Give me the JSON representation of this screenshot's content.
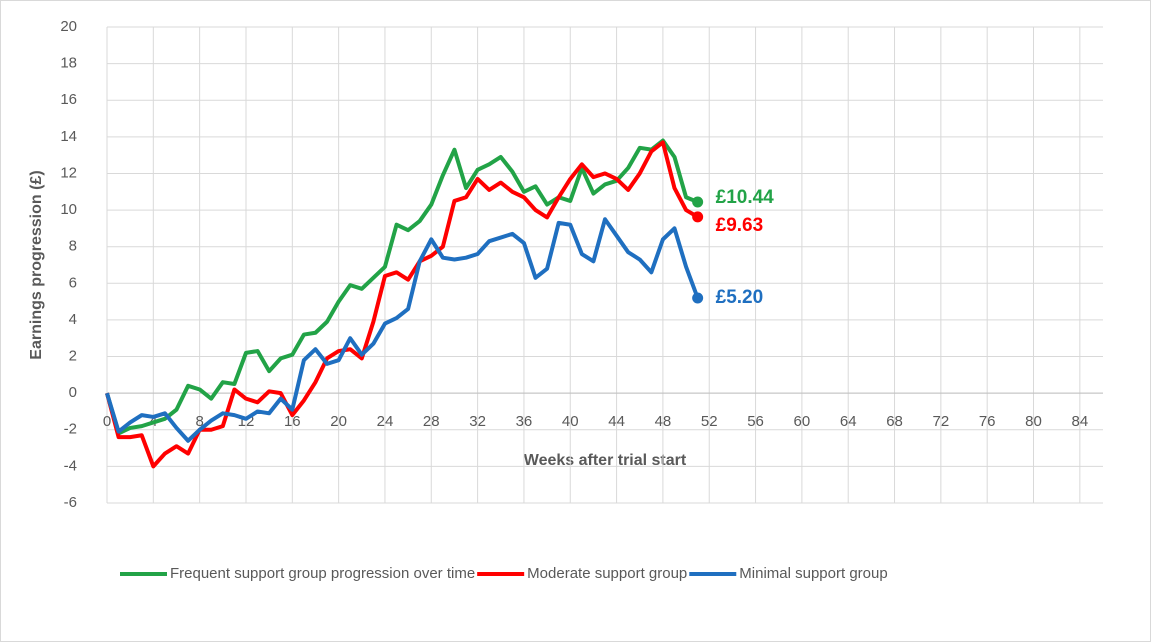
{
  "chart_data": {
    "type": "line",
    "x_label": "Weeks after trial start",
    "y_label": "Earnings progression (£)",
    "xlim": [
      0,
      86
    ],
    "xticks": [
      0,
      4,
      8,
      12,
      16,
      20,
      24,
      28,
      32,
      36,
      40,
      44,
      48,
      52,
      56,
      60,
      64,
      68,
      72,
      76,
      80,
      84
    ],
    "ylim": [
      -6,
      20
    ],
    "yticks": [
      -6,
      -4,
      -2,
      0,
      2,
      4,
      6,
      8,
      10,
      12,
      14,
      16,
      18,
      20
    ],
    "grid": true,
    "legend": "bottom",
    "x": [
      0,
      1,
      2,
      3,
      4,
      5,
      6,
      7,
      8,
      9,
      10,
      11,
      12,
      13,
      14,
      15,
      16,
      17,
      18,
      19,
      20,
      21,
      22,
      23,
      24,
      25,
      26,
      27,
      28,
      29,
      30,
      31,
      32,
      33,
      34,
      35,
      36,
      37,
      38,
      39,
      40,
      41,
      42,
      43,
      44,
      45,
      46,
      47,
      48,
      49,
      50,
      51
    ],
    "series": [
      {
        "name": "Frequent support group progression over time",
        "color": "#22a347",
        "end_label": "£10.44",
        "values": [
          0,
          -2.2,
          -1.9,
          -1.8,
          -1.6,
          -1.4,
          -0.9,
          0.4,
          0.2,
          -0.3,
          0.6,
          0.5,
          2.2,
          2.3,
          1.2,
          1.9,
          2.1,
          3.2,
          3.3,
          3.9,
          5.0,
          5.9,
          5.7,
          6.3,
          6.9,
          9.2,
          8.9,
          9.4,
          10.3,
          11.9,
          13.3,
          11.2,
          12.2,
          12.5,
          12.9,
          12.1,
          11.0,
          11.3,
          10.3,
          10.7,
          10.5,
          12.3,
          10.9,
          11.4,
          11.6,
          12.3,
          13.4,
          13.3,
          13.8,
          12.9,
          10.7,
          10.44
        ]
      },
      {
        "name": "Moderate support group",
        "color": "#ff0000",
        "end_label": "£9.63",
        "values": [
          0,
          -2.4,
          -2.4,
          -2.3,
          -4.0,
          -3.3,
          -2.9,
          -3.3,
          -2.0,
          -2.0,
          -1.8,
          0.2,
          -0.3,
          -0.5,
          0.1,
          0.0,
          -1.2,
          -0.4,
          0.6,
          1.9,
          2.3,
          2.4,
          1.9,
          3.9,
          6.4,
          6.6,
          6.2,
          7.2,
          7.5,
          8.0,
          10.5,
          10.7,
          11.7,
          11.1,
          11.5,
          11.0,
          10.7,
          10.0,
          9.6,
          10.7,
          11.7,
          12.5,
          11.8,
          12.0,
          11.7,
          11.1,
          12.0,
          13.2,
          13.7,
          11.2,
          10.0,
          9.63
        ]
      },
      {
        "name": "Minimal support group",
        "color": "#1f6fc0",
        "end_label": "£5.20",
        "values": [
          0,
          -2.1,
          -1.6,
          -1.2,
          -1.3,
          -1.1,
          -1.9,
          -2.6,
          -2.0,
          -1.5,
          -1.1,
          -1.2,
          -1.4,
          -1.0,
          -1.1,
          -0.3,
          -0.9,
          1.8,
          2.4,
          1.6,
          1.8,
          3.0,
          2.1,
          2.7,
          3.8,
          4.1,
          4.6,
          7.2,
          8.4,
          7.4,
          7.3,
          7.4,
          7.6,
          8.3,
          8.5,
          8.7,
          8.2,
          6.3,
          6.8,
          9.3,
          9.2,
          7.6,
          7.2,
          9.5,
          8.6,
          7.7,
          7.3,
          6.6,
          8.4,
          9.0,
          6.9,
          5.2
        ]
      }
    ]
  }
}
